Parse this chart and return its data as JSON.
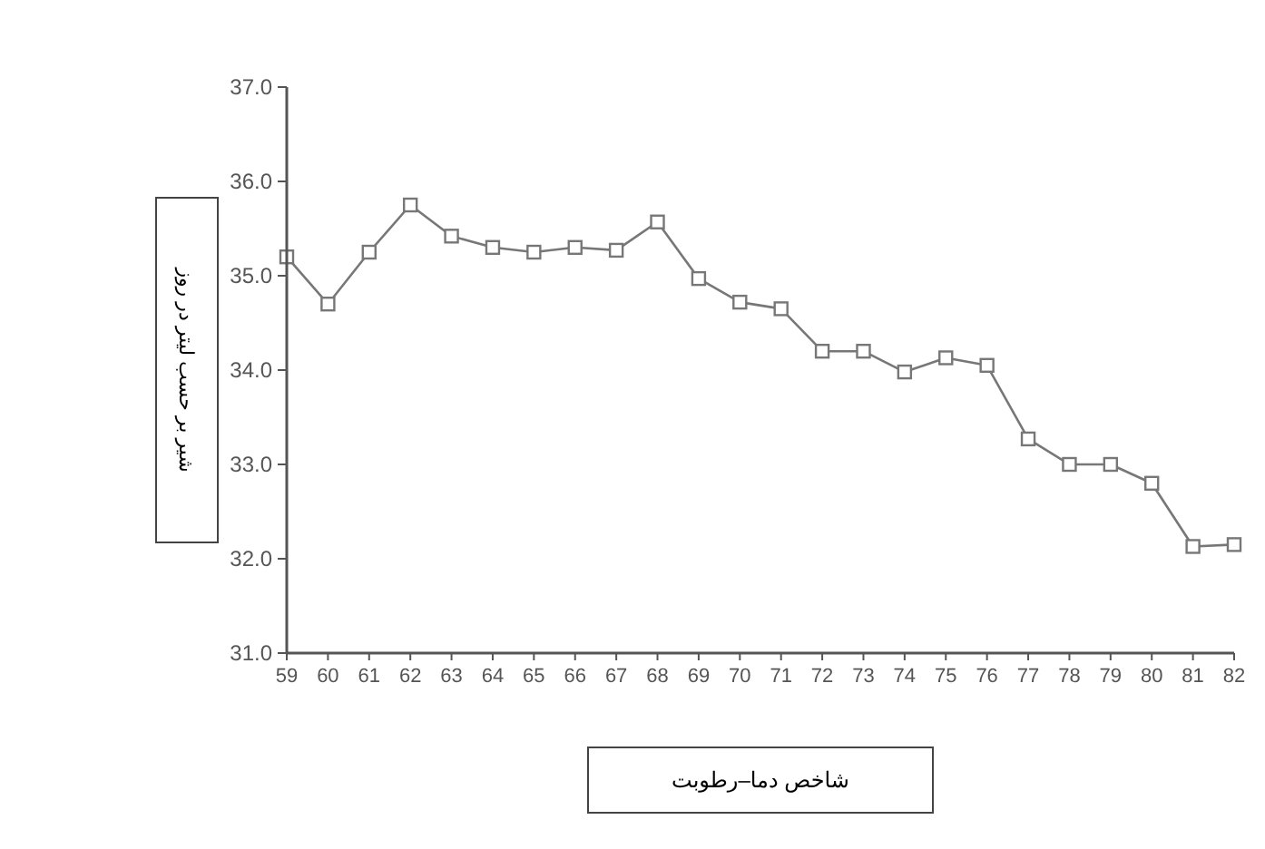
{
  "chart_data": {
    "type": "line",
    "xlabel": "شاخص دما–رطوبت",
    "ylabel": "شیر بر حسب لیتر در روز",
    "categories": [
      "59",
      "60",
      "61",
      "62",
      "63",
      "64",
      "65",
      "66",
      "67",
      "68",
      "69",
      "70",
      "71",
      "72",
      "73",
      "74",
      "75",
      "76",
      "77",
      "78",
      "79",
      "80",
      "81",
      "82"
    ],
    "series": [
      {
        "color": "#777777",
        "values": [
          35.2,
          34.7,
          35.25,
          35.75,
          35.42,
          35.3,
          35.25,
          35.3,
          35.27,
          35.57,
          34.97,
          34.72,
          34.65,
          34.2,
          34.2,
          33.98,
          34.13,
          34.05,
          33.27,
          33.0,
          33.0,
          32.8,
          32.13,
          32.15
        ]
      }
    ],
    "ylim": [
      31,
      37
    ],
    "yticks": [
      {
        "value": 31,
        "label": "31.0"
      },
      {
        "value": 32,
        "label": "32.0"
      },
      {
        "value": 33,
        "label": "33.0"
      },
      {
        "value": 34,
        "label": "34.0"
      },
      {
        "value": 35,
        "label": "35.0"
      },
      {
        "value": 36,
        "label": "36.0"
      },
      {
        "value": 37,
        "label": "37.0"
      }
    ],
    "grid": false,
    "marker": "square",
    "line_style": "solid"
  }
}
